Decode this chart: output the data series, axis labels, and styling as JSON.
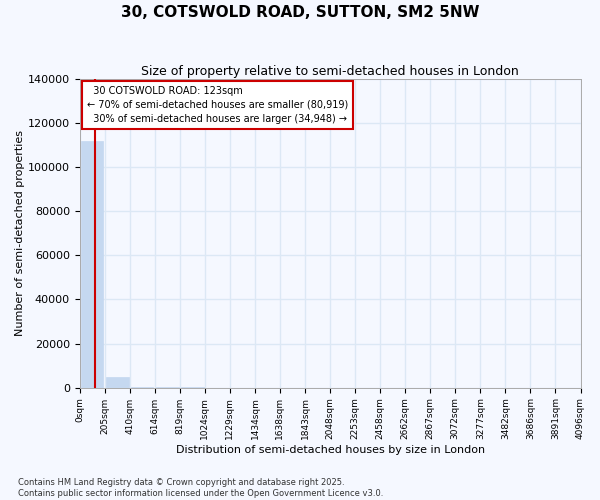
{
  "title": "30, COTSWOLD ROAD, SUTTON, SM2 5NW",
  "subtitle": "Size of property relative to semi-detached houses in London",
  "xlabel": "Distribution of semi-detached houses by size in London",
  "ylabel": "Number of semi-detached properties",
  "property_size": 123,
  "property_name": "30 COTSWOLD ROAD: 123sqm",
  "pct_smaller": 70,
  "num_smaller": 80919,
  "pct_larger": 30,
  "num_larger": 34948,
  "footer_line1": "Contains HM Land Registry data © Crown copyright and database right 2025.",
  "footer_line2": "Contains public sector information licensed under the Open Government Licence v3.0.",
  "bar_color": "#c5d8f0",
  "bar_edge_color": "#c5d8f0",
  "property_line_color": "#cc0000",
  "annotation_box_color": "#cc0000",
  "background_color": "#f5f8ff",
  "plot_bg_color": "#f5f8ff",
  "grid_color": "#dce8f5",
  "title_color": "#000000",
  "bin_edges": [
    0,
    205,
    410,
    614,
    819,
    1024,
    1229,
    1434,
    1638,
    1843,
    2048,
    2253,
    2458,
    2662,
    2867,
    3072,
    3277,
    3482,
    3686,
    3891,
    4096
  ],
  "bin_labels": [
    "0sqm",
    "205sqm",
    "410sqm",
    "614sqm",
    "819sqm",
    "1024sqm",
    "1229sqm",
    "1434sqm",
    "1638sqm",
    "1843sqm",
    "2048sqm",
    "2253sqm",
    "2458sqm",
    "2662sqm",
    "2867sqm",
    "3072sqm",
    "3277sqm",
    "3482sqm",
    "3686sqm",
    "3891sqm",
    "4096sqm"
  ],
  "counts": [
    112000,
    5000,
    400,
    100,
    50,
    20,
    10,
    8,
    6,
    5,
    4,
    3,
    3,
    2,
    2,
    2,
    1,
    1,
    1,
    1
  ],
  "ylim": [
    0,
    140000
  ],
  "yticks": [
    0,
    20000,
    40000,
    60000,
    80000,
    100000,
    120000,
    140000
  ]
}
